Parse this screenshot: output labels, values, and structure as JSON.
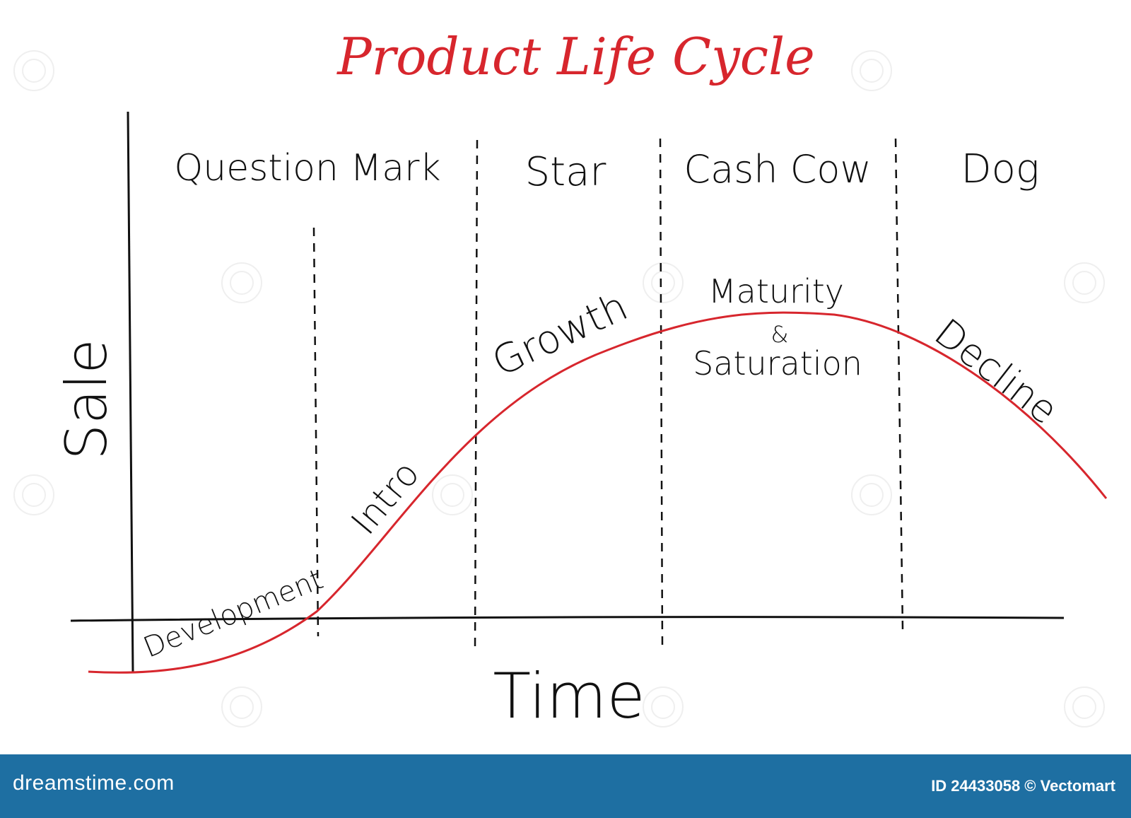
{
  "title": "Product Life Cycle",
  "axes": {
    "y_label": "Sale",
    "x_label": "Time"
  },
  "matrix_labels": [
    "Question Mark",
    "Star",
    "Cash Cow",
    "Dog"
  ],
  "stage_labels": {
    "development": "Development",
    "intro": "Intro",
    "growth": "Growth",
    "maturity_top": "Maturity",
    "maturity_amp": "&",
    "maturity_bottom": "Saturation",
    "decline": "Decline"
  },
  "footer": {
    "brand": "dreamstime.com",
    "credit": "ID 24433058 © Vectomart"
  },
  "colors": {
    "curve": "#d7262d",
    "title": "#d7262d",
    "footer": "#1e6fa2"
  }
}
